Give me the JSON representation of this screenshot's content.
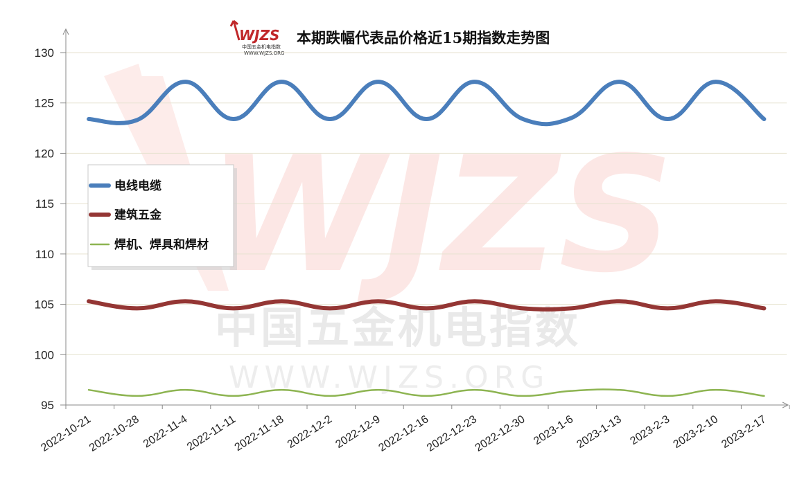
{
  "chart_data": {
    "type": "line",
    "title": "本期跌幅代表品价格近15期指数走势图",
    "categories": [
      "2022-10-21",
      "2022-10-28",
      "2022-11-4",
      "2022-11-11",
      "2022-11-18",
      "2022-12-2",
      "2022-12-9",
      "2022-12-16",
      "2022-12-23",
      "2022-12-30",
      "2023-1-6",
      "2023-1-13",
      "2023-2-3",
      "2023-2-10",
      "2023-2-17"
    ],
    "yticks": [
      95,
      100,
      105,
      110,
      115,
      120,
      125,
      130
    ],
    "ylim": [
      95,
      130
    ],
    "grid": "horizontal",
    "legend_position": "left-center",
    "series": [
      {
        "name": "电线电缆",
        "color": "#4a7ebb",
        "values": [
          123.4,
          123.3,
          127.1,
          123.4,
          127.1,
          123.4,
          127.1,
          123.4,
          127.1,
          123.4,
          123.5,
          127.1,
          123.4,
          127.1,
          123.4
        ]
      },
      {
        "name": "建筑五金",
        "color": "#943634",
        "values": [
          105.3,
          104.6,
          105.3,
          104.6,
          105.3,
          104.6,
          105.3,
          104.6,
          105.3,
          104.6,
          104.6,
          105.3,
          104.6,
          105.3,
          104.6
        ]
      },
      {
        "name": "焊机、焊具和焊材",
        "color": "#8db451",
        "values": [
          96.5,
          95.9,
          96.5,
          95.9,
          96.5,
          95.9,
          96.5,
          95.9,
          96.5,
          95.9,
          96.4,
          96.5,
          95.9,
          96.5,
          95.9
        ]
      }
    ]
  },
  "watermark": {
    "logo": "WJZS",
    "logo_caption": "中国五金机电指数",
    "logo_url": "WWW.WJZS.ORG",
    "big_letters": "WJZS",
    "cn_text": "中国五金机电指数",
    "url_text": "WWW.WJZS.ORG"
  }
}
